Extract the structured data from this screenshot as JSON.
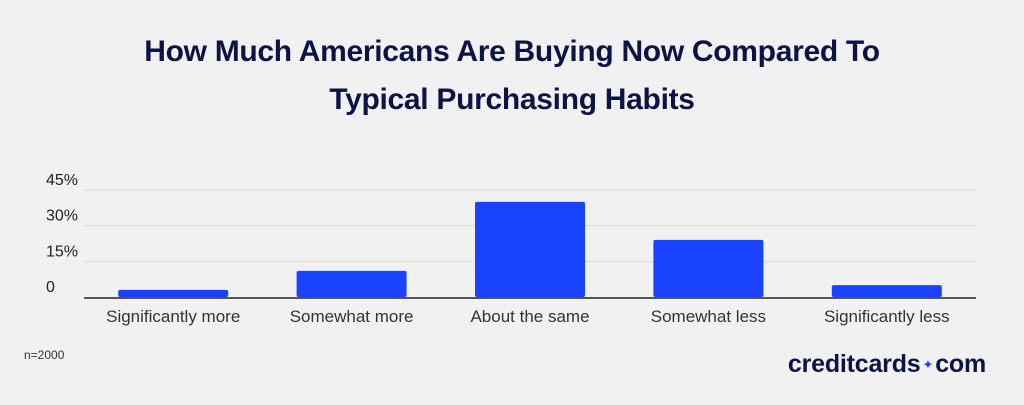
{
  "title_line1": "How Much Americans Are Buying Now Compared To",
  "title_line2": "Typical Purchasing Habits",
  "note": "n=2000",
  "brand": {
    "left": "creditcards",
    "sep": "✦",
    "right": "com"
  },
  "colors": {
    "bar": "#1a43ff",
    "title": "#0c1446",
    "grid": "#d9d9d9",
    "axis": "#555555"
  },
  "chart_data": {
    "type": "bar",
    "categories": [
      "Significantly more",
      "Somewhat more",
      "About the same",
      "Somewhat less",
      "Significantly less"
    ],
    "values": [
      3,
      11,
      40,
      24,
      5
    ],
    "yticks": [
      "0",
      "15%",
      "30%",
      "45%"
    ],
    "ytick_values": [
      0,
      15,
      30,
      45
    ],
    "ylim": [
      0,
      45
    ],
    "grid": true,
    "legend": "none"
  }
}
